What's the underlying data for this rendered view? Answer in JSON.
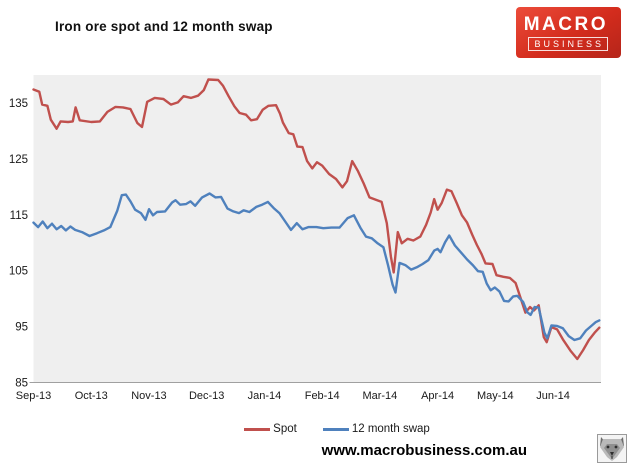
{
  "header": {
    "title": "Iron ore spot and 12 month swap"
  },
  "logo": {
    "line1": "MACRO",
    "line2": "BUSINESS",
    "bg_color": "#d32c1d"
  },
  "footer": {
    "url": "www.macrobusiness.com.au"
  },
  "chart_data": {
    "type": "line",
    "title": "Iron ore spot and 12 month swap",
    "xlabel": "",
    "ylabel": "",
    "x_unit": "months (0 = Sep-13 tick)",
    "xlim": [
      0,
      9.83
    ],
    "ylim": [
      85,
      140
    ],
    "yticks": [
      85,
      95,
      105,
      115,
      125,
      135
    ],
    "xticks": [
      {
        "pos": 0,
        "label": "Sep-13"
      },
      {
        "pos": 1,
        "label": "Oct-13"
      },
      {
        "pos": 2,
        "label": "Nov-13"
      },
      {
        "pos": 3,
        "label": "Dec-13"
      },
      {
        "pos": 4,
        "label": "Jan-14"
      },
      {
        "pos": 5,
        "label": "Feb-14"
      },
      {
        "pos": 6,
        "label": "Mar-14"
      },
      {
        "pos": 7,
        "label": "Apr-14"
      },
      {
        "pos": 8,
        "label": "May-14"
      },
      {
        "pos": 9,
        "label": "Jun-14"
      }
    ],
    "grid": false,
    "plot_bg": "#efefef",
    "axis_color": "#a0a0a0",
    "legend_position": "bottom",
    "series": [
      {
        "name": "Spot",
        "color": "#C0504D",
        "points": [
          [
            0.0,
            137.4
          ],
          [
            0.1,
            137.0
          ],
          [
            0.15,
            134.7
          ],
          [
            0.24,
            134.5
          ],
          [
            0.3,
            132.0
          ],
          [
            0.4,
            130.4
          ],
          [
            0.47,
            131.7
          ],
          [
            0.6,
            131.6
          ],
          [
            0.68,
            131.7
          ],
          [
            0.73,
            134.2
          ],
          [
            0.8,
            131.9
          ],
          [
            1.0,
            131.6
          ],
          [
            1.15,
            131.7
          ],
          [
            1.28,
            133.4
          ],
          [
            1.42,
            134.3
          ],
          [
            1.55,
            134.2
          ],
          [
            1.68,
            133.9
          ],
          [
            1.8,
            131.4
          ],
          [
            1.88,
            130.7
          ],
          [
            1.97,
            135.2
          ],
          [
            2.1,
            135.9
          ],
          [
            2.25,
            135.7
          ],
          [
            2.38,
            134.7
          ],
          [
            2.5,
            135.1
          ],
          [
            2.6,
            136.2
          ],
          [
            2.73,
            135.9
          ],
          [
            2.85,
            136.3
          ],
          [
            2.95,
            137.3
          ],
          [
            3.03,
            139.2
          ],
          [
            3.2,
            139.1
          ],
          [
            3.28,
            138.1
          ],
          [
            3.38,
            136.2
          ],
          [
            3.48,
            134.4
          ],
          [
            3.57,
            133.2
          ],
          [
            3.68,
            132.9
          ],
          [
            3.77,
            131.9
          ],
          [
            3.87,
            132.1
          ],
          [
            3.97,
            133.8
          ],
          [
            4.07,
            134.5
          ],
          [
            4.2,
            134.6
          ],
          [
            4.27,
            133.1
          ],
          [
            4.32,
            131.5
          ],
          [
            4.42,
            129.6
          ],
          [
            4.5,
            129.4
          ],
          [
            4.57,
            127.2
          ],
          [
            4.66,
            127.1
          ],
          [
            4.74,
            124.6
          ],
          [
            4.83,
            123.3
          ],
          [
            4.91,
            124.4
          ],
          [
            5.0,
            123.8
          ],
          [
            5.12,
            122.3
          ],
          [
            5.24,
            121.4
          ],
          [
            5.35,
            119.9
          ],
          [
            5.43,
            121.0
          ],
          [
            5.52,
            124.6
          ],
          [
            5.62,
            122.8
          ],
          [
            5.72,
            120.6
          ],
          [
            5.82,
            118.1
          ],
          [
            5.93,
            117.7
          ],
          [
            6.03,
            117.3
          ],
          [
            6.12,
            113.5
          ],
          [
            6.19,
            107.5
          ],
          [
            6.24,
            104.7
          ],
          [
            6.31,
            111.9
          ],
          [
            6.38,
            109.9
          ],
          [
            6.48,
            110.7
          ],
          [
            6.58,
            110.4
          ],
          [
            6.7,
            111.1
          ],
          [
            6.8,
            113.2
          ],
          [
            6.88,
            115.4
          ],
          [
            6.94,
            117.8
          ],
          [
            7.0,
            115.9
          ],
          [
            7.07,
            117.1
          ],
          [
            7.16,
            119.5
          ],
          [
            7.24,
            119.2
          ],
          [
            7.33,
            117.1
          ],
          [
            7.42,
            114.9
          ],
          [
            7.51,
            113.6
          ],
          [
            7.6,
            111.4
          ],
          [
            7.68,
            109.6
          ],
          [
            7.76,
            108.0
          ],
          [
            7.83,
            106.3
          ],
          [
            7.95,
            106.2
          ],
          [
            8.02,
            104.2
          ],
          [
            8.14,
            103.9
          ],
          [
            8.25,
            103.7
          ],
          [
            8.35,
            102.8
          ],
          [
            8.44,
            100.0
          ],
          [
            8.52,
            97.5
          ],
          [
            8.6,
            98.5
          ],
          [
            8.67,
            97.9
          ],
          [
            8.75,
            98.8
          ],
          [
            8.84,
            93.1
          ],
          [
            8.89,
            92.2
          ],
          [
            8.97,
            94.9
          ],
          [
            9.07,
            94.5
          ],
          [
            9.17,
            92.7
          ],
          [
            9.3,
            90.7
          ],
          [
            9.42,
            89.2
          ],
          [
            9.52,
            90.8
          ],
          [
            9.62,
            92.6
          ],
          [
            9.72,
            93.9
          ],
          [
            9.8,
            94.8
          ]
        ]
      },
      {
        "name": "12 month swap",
        "color": "#4F81BD",
        "points": [
          [
            0.0,
            113.6
          ],
          [
            0.08,
            112.8
          ],
          [
            0.16,
            113.8
          ],
          [
            0.24,
            112.6
          ],
          [
            0.32,
            113.4
          ],
          [
            0.4,
            112.4
          ],
          [
            0.48,
            113.0
          ],
          [
            0.56,
            112.2
          ],
          [
            0.64,
            112.9
          ],
          [
            0.72,
            112.3
          ],
          [
            0.84,
            111.9
          ],
          [
            0.97,
            111.2
          ],
          [
            1.1,
            111.7
          ],
          [
            1.22,
            112.2
          ],
          [
            1.33,
            112.8
          ],
          [
            1.45,
            115.7
          ],
          [
            1.53,
            118.5
          ],
          [
            1.6,
            118.6
          ],
          [
            1.68,
            117.4
          ],
          [
            1.76,
            115.9
          ],
          [
            1.86,
            115.3
          ],
          [
            1.94,
            114.1
          ],
          [
            2.0,
            116.0
          ],
          [
            2.07,
            114.9
          ],
          [
            2.14,
            115.5
          ],
          [
            2.28,
            115.6
          ],
          [
            2.4,
            117.2
          ],
          [
            2.46,
            117.6
          ],
          [
            2.54,
            116.8
          ],
          [
            2.64,
            116.9
          ],
          [
            2.72,
            117.4
          ],
          [
            2.8,
            116.6
          ],
          [
            2.92,
            118.1
          ],
          [
            3.05,
            118.8
          ],
          [
            3.15,
            118.1
          ],
          [
            3.25,
            118.2
          ],
          [
            3.36,
            116.1
          ],
          [
            3.46,
            115.6
          ],
          [
            3.56,
            115.3
          ],
          [
            3.64,
            115.8
          ],
          [
            3.74,
            115.5
          ],
          [
            3.86,
            116.4
          ],
          [
            3.96,
            116.8
          ],
          [
            4.06,
            117.3
          ],
          [
            4.16,
            116.2
          ],
          [
            4.26,
            115.3
          ],
          [
            4.36,
            113.8
          ],
          [
            4.46,
            112.3
          ],
          [
            4.56,
            113.5
          ],
          [
            4.66,
            112.4
          ],
          [
            4.76,
            112.8
          ],
          [
            4.9,
            112.8
          ],
          [
            5.02,
            112.6
          ],
          [
            5.16,
            112.7
          ],
          [
            5.3,
            112.7
          ],
          [
            5.44,
            114.4
          ],
          [
            5.55,
            114.9
          ],
          [
            5.66,
            112.7
          ],
          [
            5.76,
            111.1
          ],
          [
            5.86,
            110.8
          ],
          [
            5.96,
            109.9
          ],
          [
            6.06,
            109.2
          ],
          [
            6.14,
            106.0
          ],
          [
            6.22,
            102.5
          ],
          [
            6.27,
            101.1
          ],
          [
            6.34,
            106.4
          ],
          [
            6.44,
            106.0
          ],
          [
            6.54,
            105.2
          ],
          [
            6.64,
            105.6
          ],
          [
            6.74,
            106.2
          ],
          [
            6.84,
            106.9
          ],
          [
            6.94,
            108.6
          ],
          [
            7.0,
            108.9
          ],
          [
            7.05,
            108.3
          ],
          [
            7.13,
            110.1
          ],
          [
            7.2,
            111.3
          ],
          [
            7.3,
            109.5
          ],
          [
            7.41,
            108.2
          ],
          [
            7.51,
            107.0
          ],
          [
            7.61,
            106.0
          ],
          [
            7.7,
            104.9
          ],
          [
            7.78,
            104.8
          ],
          [
            7.85,
            102.7
          ],
          [
            7.92,
            101.5
          ],
          [
            7.99,
            102.0
          ],
          [
            8.07,
            101.3
          ],
          [
            8.15,
            99.6
          ],
          [
            8.23,
            99.5
          ],
          [
            8.31,
            100.4
          ],
          [
            8.38,
            100.5
          ],
          [
            8.48,
            99.4
          ],
          [
            8.55,
            97.6
          ],
          [
            8.61,
            97.1
          ],
          [
            8.68,
            98.5
          ],
          [
            8.75,
            98.4
          ],
          [
            8.85,
            93.9
          ],
          [
            8.9,
            92.9
          ],
          [
            8.97,
            95.2
          ],
          [
            9.07,
            95.1
          ],
          [
            9.17,
            94.7
          ],
          [
            9.27,
            93.3
          ],
          [
            9.37,
            92.6
          ],
          [
            9.47,
            92.9
          ],
          [
            9.57,
            94.3
          ],
          [
            9.67,
            95.2
          ],
          [
            9.74,
            95.8
          ],
          [
            9.8,
            96.1
          ]
        ]
      }
    ]
  }
}
